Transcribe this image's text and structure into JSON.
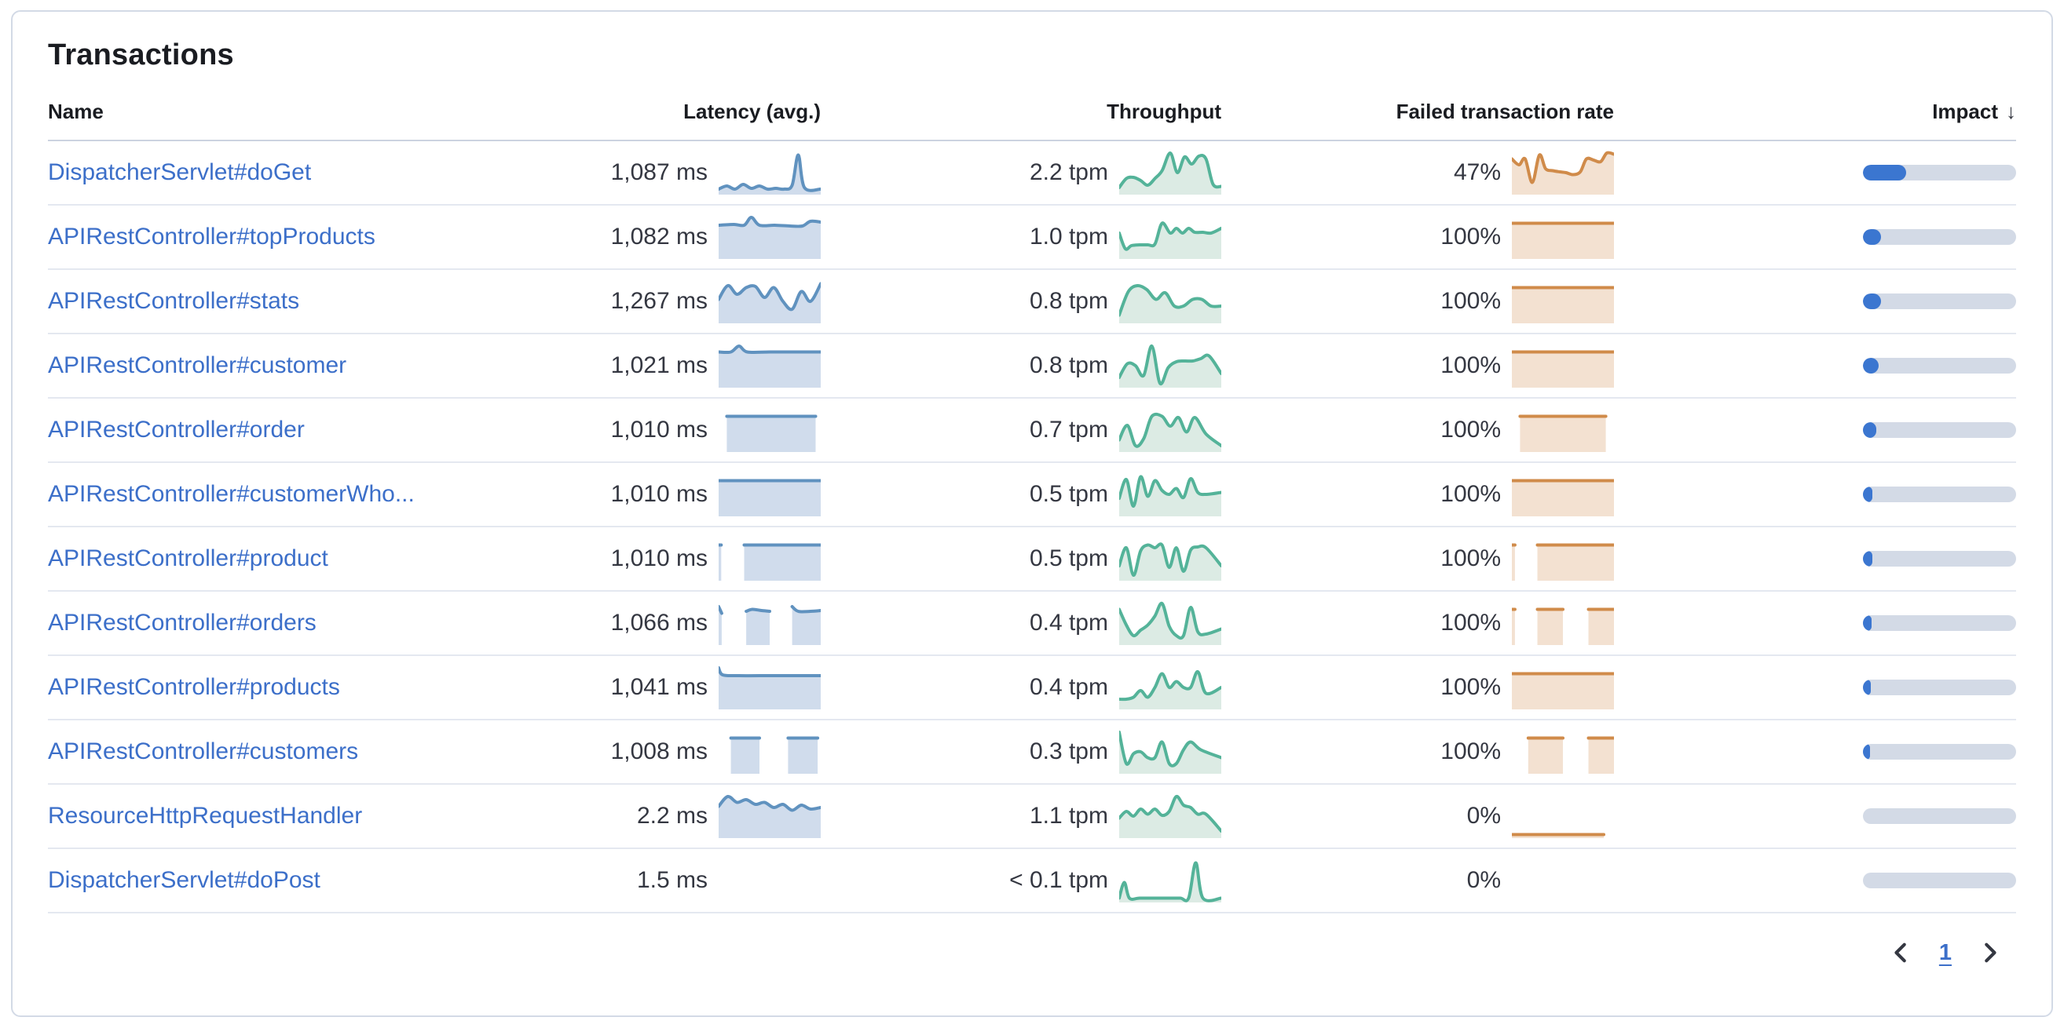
{
  "title": "Transactions",
  "columns": {
    "name": "Name",
    "latency": "Latency (avg.)",
    "throughput": "Throughput",
    "failed": "Failed transaction rate",
    "impact": "Impact",
    "impact_sort_icon": "↓"
  },
  "colors": {
    "link": "#3c6fc9",
    "latency_line": "#6092bf",
    "latency_fill": "#d0dcec",
    "throughput_line": "#54b399",
    "throughput_fill": "#dcebe4",
    "failed_line": "#d08b4a",
    "failed_fill": "#f3e1d1",
    "impact_fill": "#3b76d0",
    "impact_track": "#d3dae6"
  },
  "pagination": {
    "page": "1"
  },
  "rows": [
    {
      "name": "DispatcherServlet#doGet",
      "latency": "1,087 ms",
      "throughput": "2.2 tpm",
      "failed_rate": "47%",
      "impact": 0.28,
      "latency_spark": [
        [
          0,
          0.08
        ],
        [
          0.08,
          0.16
        ],
        [
          0.16,
          0.08
        ],
        [
          0.24,
          0.2
        ],
        [
          0.32,
          0.1
        ],
        [
          0.4,
          0.16
        ],
        [
          0.48,
          0.08
        ],
        [
          0.56,
          0.1
        ],
        [
          0.64,
          0.08
        ],
        [
          0.72,
          0.18
        ],
        [
          0.78,
          0.95
        ],
        [
          0.84,
          0.12
        ],
        [
          1,
          0.08
        ]
      ],
      "throughput_spark": [
        [
          0,
          0.12
        ],
        [
          0.07,
          0.35
        ],
        [
          0.14,
          0.38
        ],
        [
          0.21,
          0.3
        ],
        [
          0.28,
          0.18
        ],
        [
          0.35,
          0.35
        ],
        [
          0.42,
          0.55
        ],
        [
          0.5,
          1.0
        ],
        [
          0.57,
          0.5
        ],
        [
          0.64,
          0.9
        ],
        [
          0.71,
          0.72
        ],
        [
          0.78,
          0.92
        ],
        [
          0.85,
          0.85
        ],
        [
          0.92,
          0.2
        ],
        [
          1,
          0.15
        ]
      ],
      "failed_spark": [
        [
          0,
          0.85
        ],
        [
          0.07,
          0.7
        ],
        [
          0.13,
          0.85
        ],
        [
          0.2,
          0.25
        ],
        [
          0.27,
          0.95
        ],
        [
          0.33,
          0.6
        ],
        [
          0.4,
          0.55
        ],
        [
          0.47,
          0.52
        ],
        [
          0.53,
          0.5
        ],
        [
          0.6,
          0.45
        ],
        [
          0.67,
          0.52
        ],
        [
          0.73,
          0.85
        ],
        [
          0.8,
          0.82
        ],
        [
          0.87,
          0.78
        ],
        [
          0.93,
          1.0
        ],
        [
          1,
          0.97
        ]
      ]
    },
    {
      "name": "APIRestController#topProducts",
      "latency": "1,082 ms",
      "throughput": "1.0 tpm",
      "failed_rate": "100%",
      "impact": 0.12,
      "latency_spark": [
        [
          0,
          0.8
        ],
        [
          0.15,
          0.82
        ],
        [
          0.25,
          0.8
        ],
        [
          0.32,
          1.0
        ],
        [
          0.4,
          0.8
        ],
        [
          0.55,
          0.8
        ],
        [
          0.7,
          0.78
        ],
        [
          0.82,
          0.78
        ],
        [
          0.9,
          0.9
        ],
        [
          1,
          0.88
        ]
      ],
      "throughput_spark": [
        [
          0,
          0.6
        ],
        [
          0.06,
          0.2
        ],
        [
          0.12,
          0.28
        ],
        [
          0.2,
          0.3
        ],
        [
          0.28,
          0.3
        ],
        [
          0.35,
          0.32
        ],
        [
          0.42,
          0.85
        ],
        [
          0.5,
          0.6
        ],
        [
          0.56,
          0.72
        ],
        [
          0.62,
          0.6
        ],
        [
          0.68,
          0.72
        ],
        [
          0.74,
          0.62
        ],
        [
          0.82,
          0.62
        ],
        [
          0.9,
          0.6
        ],
        [
          1,
          0.72
        ]
      ],
      "failed_spark": [
        [
          0,
          0.85
        ],
        [
          1,
          0.85
        ]
      ]
    },
    {
      "name": "APIRestController#stats",
      "latency": "1,267 ms",
      "throughput": "0.8 tpm",
      "failed_rate": "100%",
      "impact": 0.12,
      "latency_spark": [
        [
          0,
          0.55
        ],
        [
          0.09,
          0.9
        ],
        [
          0.18,
          0.68
        ],
        [
          0.27,
          0.85
        ],
        [
          0.36,
          0.88
        ],
        [
          0.45,
          0.6
        ],
        [
          0.54,
          0.85
        ],
        [
          0.63,
          0.5
        ],
        [
          0.72,
          0.3
        ],
        [
          0.81,
          0.75
        ],
        [
          0.9,
          0.5
        ],
        [
          1,
          0.95
        ]
      ],
      "throughput_spark": [
        [
          0,
          0.15
        ],
        [
          0.09,
          0.75
        ],
        [
          0.18,
          0.9
        ],
        [
          0.27,
          0.8
        ],
        [
          0.36,
          0.55
        ],
        [
          0.45,
          0.72
        ],
        [
          0.54,
          0.38
        ],
        [
          0.63,
          0.38
        ],
        [
          0.72,
          0.55
        ],
        [
          0.81,
          0.55
        ],
        [
          0.9,
          0.38
        ],
        [
          1,
          0.38
        ]
      ],
      "failed_spark": [
        [
          0,
          0.85
        ],
        [
          1,
          0.85
        ]
      ]
    },
    {
      "name": "APIRestController#customer",
      "latency": "1,021 ms",
      "throughput": "0.8 tpm",
      "failed_rate": "100%",
      "impact": 0.1,
      "latency_spark": [
        [
          0,
          0.85
        ],
        [
          0.12,
          0.85
        ],
        [
          0.2,
          1.0
        ],
        [
          0.28,
          0.85
        ],
        [
          0.5,
          0.85
        ],
        [
          0.75,
          0.85
        ],
        [
          1,
          0.85
        ]
      ],
      "throughput_spark": [
        [
          0,
          0.2
        ],
        [
          0.08,
          0.55
        ],
        [
          0.16,
          0.5
        ],
        [
          0.24,
          0.25
        ],
        [
          0.32,
          1.0
        ],
        [
          0.4,
          0.05
        ],
        [
          0.48,
          0.45
        ],
        [
          0.56,
          0.6
        ],
        [
          0.64,
          0.62
        ],
        [
          0.72,
          0.62
        ],
        [
          0.8,
          0.68
        ],
        [
          0.88,
          0.75
        ],
        [
          1,
          0.3
        ]
      ],
      "failed_spark": [
        [
          0,
          0.85
        ],
        [
          1,
          0.85
        ]
      ]
    },
    {
      "name": "APIRestController#order",
      "latency": "1,010 ms",
      "throughput": "0.7 tpm",
      "failed_rate": "100%",
      "impact": 0.085,
      "latency_spark": [
        [
          0.08,
          0.85
        ],
        [
          0.95,
          0.85
        ]
      ],
      "throughput_spark": [
        [
          0,
          0.25
        ],
        [
          0.08,
          0.62
        ],
        [
          0.16,
          0.1
        ],
        [
          0.24,
          0.28
        ],
        [
          0.32,
          0.85
        ],
        [
          0.42,
          0.85
        ],
        [
          0.5,
          0.6
        ],
        [
          0.58,
          0.82
        ],
        [
          0.66,
          0.45
        ],
        [
          0.74,
          0.82
        ],
        [
          0.85,
          0.4
        ],
        [
          1,
          0.1
        ]
      ],
      "failed_spark": [
        [
          0.08,
          0.85
        ],
        [
          0.92,
          0.85
        ]
      ]
    },
    {
      "name": "APIRestController#customerWho...",
      "latency": "1,010 ms",
      "throughput": "0.5 tpm",
      "failed_rate": "100%",
      "impact": 0.06,
      "latency_spark": [
        [
          0,
          0.85
        ],
        [
          1,
          0.85
        ]
      ],
      "throughput_spark": [
        [
          0,
          0.4
        ],
        [
          0.07,
          0.88
        ],
        [
          0.14,
          0.2
        ],
        [
          0.21,
          0.95
        ],
        [
          0.28,
          0.45
        ],
        [
          0.35,
          0.85
        ],
        [
          0.42,
          0.6
        ],
        [
          0.49,
          0.5
        ],
        [
          0.56,
          0.65
        ],
        [
          0.63,
          0.42
        ],
        [
          0.7,
          0.9
        ],
        [
          0.77,
          0.55
        ],
        [
          0.85,
          0.5
        ],
        [
          1,
          0.55
        ]
      ],
      "failed_spark": [
        [
          0,
          0.85
        ],
        [
          1,
          0.85
        ]
      ]
    },
    {
      "name": "APIRestController#product",
      "latency": "1,010 ms",
      "throughput": "0.5 tpm",
      "failed_rate": "100%",
      "impact": 0.06,
      "latency_spark": [
        [
          0,
          0.85
        ],
        [
          0.025,
          0.85
        ],
        null,
        [
          0.25,
          0.85
        ],
        [
          1,
          0.85
        ]
      ],
      "throughput_spark": [
        [
          0,
          0.32
        ],
        [
          0.07,
          0.78
        ],
        [
          0.14,
          0.08
        ],
        [
          0.21,
          0.7
        ],
        [
          0.28,
          0.85
        ],
        [
          0.35,
          0.78
        ],
        [
          0.42,
          0.85
        ],
        [
          0.49,
          0.28
        ],
        [
          0.56,
          0.78
        ],
        [
          0.63,
          0.18
        ],
        [
          0.7,
          0.72
        ],
        [
          0.77,
          0.8
        ],
        [
          0.85,
          0.78
        ],
        [
          1,
          0.32
        ]
      ],
      "failed_spark": [
        [
          0,
          0.85
        ],
        [
          0.03,
          0.85
        ],
        null,
        [
          0.25,
          0.85
        ],
        [
          1,
          0.85
        ]
      ]
    },
    {
      "name": "APIRestController#orders",
      "latency": "1,066 ms",
      "throughput": "0.4 tpm",
      "failed_rate": "100%",
      "impact": 0.055,
      "latency_spark": [
        [
          0,
          0.92
        ],
        [
          0.03,
          0.75
        ],
        null,
        [
          0.27,
          0.8
        ],
        [
          0.33,
          0.85
        ],
        [
          0.42,
          0.82
        ],
        [
          0.5,
          0.8
        ],
        null,
        [
          0.72,
          0.92
        ],
        [
          0.78,
          0.8
        ],
        [
          0.9,
          0.8
        ],
        [
          1,
          0.82
        ]
      ],
      "throughput_spark": [
        [
          0,
          0.85
        ],
        [
          0.07,
          0.45
        ],
        [
          0.14,
          0.18
        ],
        [
          0.21,
          0.32
        ],
        [
          0.28,
          0.45
        ],
        [
          0.35,
          0.68
        ],
        [
          0.42,
          1.0
        ],
        [
          0.49,
          0.42
        ],
        [
          0.56,
          0.18
        ],
        [
          0.63,
          0.18
        ],
        [
          0.7,
          0.9
        ],
        [
          0.77,
          0.28
        ],
        [
          0.85,
          0.22
        ],
        [
          1,
          0.35
        ]
      ],
      "failed_spark": [
        [
          0,
          0.85
        ],
        [
          0.03,
          0.85
        ],
        null,
        [
          0.25,
          0.85
        ],
        [
          0.5,
          0.85
        ],
        null,
        [
          0.75,
          0.85
        ],
        [
          1,
          0.85
        ]
      ]
    },
    {
      "name": "APIRestController#products",
      "latency": "1,041 ms",
      "throughput": "0.4 tpm",
      "failed_rate": "100%",
      "impact": 0.05,
      "latency_spark": [
        [
          0,
          1.0
        ],
        [
          0.04,
          0.82
        ],
        [
          0.2,
          0.8
        ],
        [
          0.5,
          0.8
        ],
        [
          0.75,
          0.8
        ],
        [
          1,
          0.8
        ]
      ],
      "throughput_spark": [
        [
          0,
          0.2
        ],
        [
          0.07,
          0.2
        ],
        [
          0.14,
          0.25
        ],
        [
          0.21,
          0.42
        ],
        [
          0.28,
          0.25
        ],
        [
          0.35,
          0.5
        ],
        [
          0.42,
          0.85
        ],
        [
          0.49,
          0.5
        ],
        [
          0.56,
          0.65
        ],
        [
          0.63,
          0.5
        ],
        [
          0.7,
          0.5
        ],
        [
          0.77,
          0.9
        ],
        [
          0.85,
          0.35
        ],
        [
          1,
          0.5
        ]
      ],
      "failed_spark": [
        [
          0,
          0.85
        ],
        [
          1,
          0.85
        ]
      ]
    },
    {
      "name": "APIRestController#customers",
      "latency": "1,008 ms",
      "throughput": "0.3 tpm",
      "failed_rate": "100%",
      "impact": 0.045,
      "latency_spark": [
        [
          0.12,
          0.85
        ],
        [
          0.4,
          0.85
        ],
        null,
        [
          0.68,
          0.85
        ],
        [
          0.97,
          0.85
        ]
      ],
      "throughput_spark": [
        [
          0,
          1.0
        ],
        [
          0.07,
          0.2
        ],
        [
          0.14,
          0.45
        ],
        [
          0.21,
          0.5
        ],
        [
          0.28,
          0.35
        ],
        [
          0.35,
          0.35
        ],
        [
          0.42,
          0.75
        ],
        [
          0.49,
          0.2
        ],
        [
          0.56,
          0.2
        ],
        [
          0.63,
          0.55
        ],
        [
          0.7,
          0.75
        ],
        [
          0.8,
          0.55
        ],
        [
          1,
          0.35
        ]
      ],
      "failed_spark": [
        [
          0.16,
          0.85
        ],
        [
          0.5,
          0.85
        ],
        null,
        [
          0.75,
          0.85
        ],
        [
          1,
          0.85
        ]
      ]
    },
    {
      "name": "ResourceHttpRequestHandler",
      "latency": "2.2 ms",
      "throughput": "1.1 tpm",
      "failed_rate": "0%",
      "impact": 0,
      "latency_spark": [
        [
          0,
          0.75
        ],
        [
          0.09,
          1.0
        ],
        [
          0.18,
          0.85
        ],
        [
          0.27,
          0.92
        ],
        [
          0.36,
          0.8
        ],
        [
          0.45,
          0.85
        ],
        [
          0.54,
          0.72
        ],
        [
          0.63,
          0.8
        ],
        [
          0.72,
          0.65
        ],
        [
          0.81,
          0.78
        ],
        [
          0.9,
          0.68
        ],
        [
          1,
          0.72
        ]
      ],
      "throughput_spark": [
        [
          0,
          0.45
        ],
        [
          0.07,
          0.62
        ],
        [
          0.14,
          0.5
        ],
        [
          0.21,
          0.68
        ],
        [
          0.28,
          0.55
        ],
        [
          0.35,
          0.68
        ],
        [
          0.42,
          0.52
        ],
        [
          0.49,
          0.62
        ],
        [
          0.56,
          1.0
        ],
        [
          0.63,
          0.78
        ],
        [
          0.7,
          0.72
        ],
        [
          0.77,
          0.55
        ],
        [
          0.85,
          0.55
        ],
        [
          1,
          0.12
        ]
      ],
      "failed_spark": [
        [
          0,
          0.03
        ],
        [
          0.9,
          0.03
        ]
      ]
    },
    {
      "name": "DispatcherServlet#doPost",
      "latency": "1.5 ms",
      "throughput": "< 0.1 tpm",
      "failed_rate": "0%",
      "impact": 0,
      "latency_spark": [],
      "throughput_spark": [
        [
          0,
          0.05
        ],
        [
          0.05,
          0.45
        ],
        [
          0.1,
          0.05
        ],
        [
          0.2,
          0.05
        ],
        [
          0.35,
          0.05
        ],
        [
          0.5,
          0.05
        ],
        [
          0.6,
          0.05
        ],
        [
          0.68,
          0.05
        ],
        [
          0.75,
          0.95
        ],
        [
          0.82,
          0.05
        ],
        [
          1,
          0.05
        ]
      ],
      "failed_spark": []
    }
  ]
}
